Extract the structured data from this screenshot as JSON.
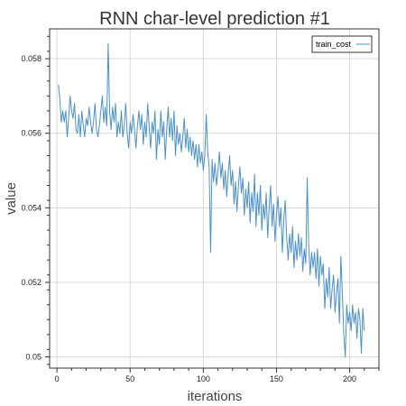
{
  "chart_data": {
    "type": "line",
    "title": "RNN char-level prediction #1",
    "xlabel": "iterations",
    "ylabel": "value",
    "xlim": [
      -5,
      220
    ],
    "ylim": [
      0.0497,
      0.0588
    ],
    "x_ticks": [
      0,
      50,
      100,
      150,
      200
    ],
    "x_tick_labels": [
      "0",
      "50",
      "100",
      "150",
      "200"
    ],
    "y_ticks": [
      0.05,
      0.052,
      0.054,
      0.056,
      0.058
    ],
    "y_tick_labels": [
      "0.05",
      "0.052",
      "0.054",
      "0.056",
      "0.058"
    ],
    "grid": true,
    "legend_position": "top-right",
    "colors": {
      "line": "#4a90c8",
      "grid": "#d8d8d8",
      "axis": "#333333"
    },
    "series": [
      {
        "name": "train_cost",
        "x_start": 1,
        "x_step": 1,
        "values": [
          0.0573,
          0.0569,
          0.0563,
          0.0566,
          0.0563,
          0.0566,
          0.0559,
          0.0564,
          0.057,
          0.0566,
          0.0564,
          0.0568,
          0.0561,
          0.056,
          0.0565,
          0.0559,
          0.0566,
          0.0562,
          0.0559,
          0.0564,
          0.0562,
          0.0567,
          0.0563,
          0.056,
          0.0563,
          0.0568,
          0.0561,
          0.0559,
          0.0562,
          0.0566,
          0.057,
          0.0563,
          0.0567,
          0.0562,
          0.0584,
          0.0566,
          0.0561,
          0.0567,
          0.0563,
          0.0568,
          0.0559,
          0.0563,
          0.056,
          0.0566,
          0.0559,
          0.0562,
          0.0568,
          0.056,
          0.0556,
          0.0563,
          0.056,
          0.0565,
          0.0561,
          0.0556,
          0.0562,
          0.0566,
          0.0561,
          0.0565,
          0.0557,
          0.0563,
          0.0559,
          0.0568,
          0.0562,
          0.0556,
          0.0563,
          0.056,
          0.0566,
          0.0553,
          0.0561,
          0.0557,
          0.0566,
          0.0559,
          0.0563,
          0.0553,
          0.0561,
          0.0567,
          0.0559,
          0.0564,
          0.0558,
          0.0566,
          0.0554,
          0.0562,
          0.0557,
          0.056,
          0.0555,
          0.0559,
          0.0564,
          0.0556,
          0.0561,
          0.0555,
          0.0559,
          0.0554,
          0.0558,
          0.0553,
          0.0557,
          0.0551,
          0.0557,
          0.0552,
          0.0555,
          0.055,
          0.0554,
          0.0565,
          0.0555,
          0.0551,
          0.0528,
          0.0553,
          0.0547,
          0.0552,
          0.0546,
          0.055,
          0.0555,
          0.0548,
          0.0552,
          0.0545,
          0.055,
          0.0543,
          0.0549,
          0.0554,
          0.0546,
          0.055,
          0.0541,
          0.0547,
          0.0539,
          0.0546,
          0.0551,
          0.0544,
          0.0548,
          0.0538,
          0.0545,
          0.054,
          0.0547,
          0.0536,
          0.0544,
          0.0539,
          0.0549,
          0.0535,
          0.0544,
          0.0538,
          0.0546,
          0.0534,
          0.0541,
          0.0537,
          0.0544,
          0.0532,
          0.054,
          0.0546,
          0.0535,
          0.0541,
          0.0531,
          0.0538,
          0.0543,
          0.0535,
          0.054,
          0.0528,
          0.0537,
          0.0542,
          0.0532,
          0.0526,
          0.0533,
          0.0528,
          0.0535,
          0.0524,
          0.0531,
          0.0526,
          0.0533,
          0.0527,
          0.0532,
          0.0523,
          0.0529,
          0.0525,
          0.0548,
          0.053,
          0.0522,
          0.0528,
          0.0524,
          0.0528,
          0.0521,
          0.0529,
          0.0519,
          0.0527,
          0.0522,
          0.0525,
          0.0513,
          0.0521,
          0.0516,
          0.0524,
          0.0513,
          0.0518,
          0.0522,
          0.0512,
          0.0517,
          0.0521,
          0.0509,
          0.0527,
          0.0517,
          0.0506,
          0.05,
          0.0514,
          0.0509,
          0.0512,
          0.0507,
          0.0514,
          0.0509,
          0.0512,
          0.0505,
          0.0513,
          0.051,
          0.0501,
          0.0513,
          0.0507
        ]
      }
    ]
  }
}
